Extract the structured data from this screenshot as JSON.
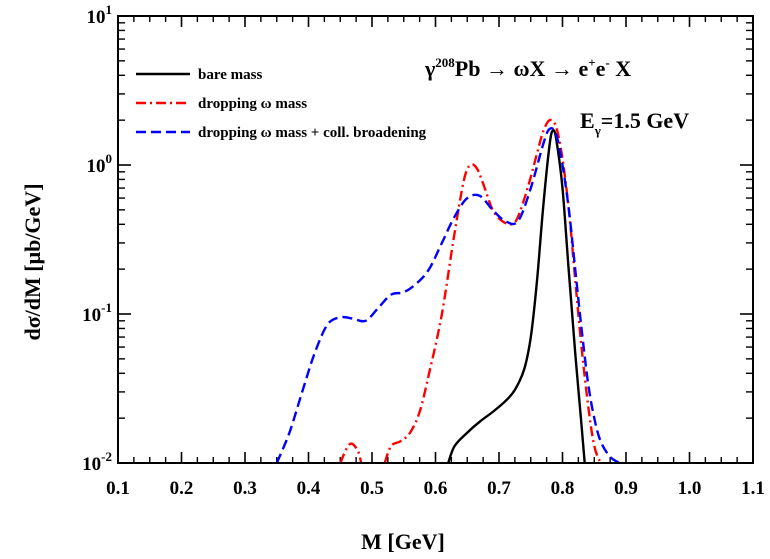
{
  "chart_data": {
    "type": "line",
    "xlabel": "M [GeV]",
    "ylabel": "dσ/dM [μb/GeV]",
    "xlim": [
      0.1,
      1.1
    ],
    "ylim": [
      0.01,
      10
    ],
    "yscale": "log",
    "xticks": [
      "0.1",
      "0.2",
      "0.3",
      "0.4",
      "0.5",
      "0.6",
      "0.7",
      "0.8",
      "0.9",
      "1.0",
      "1.1"
    ],
    "yticks": [
      {
        "base": "10",
        "exp": "-2"
      },
      {
        "base": "10",
        "exp": "-1"
      },
      {
        "base": "10",
        "exp": "0"
      },
      {
        "base": "10",
        "exp": "1"
      }
    ],
    "legend_position": "top-left",
    "annotations": {
      "reaction": {
        "gamma": "γ",
        "mass_number": "208",
        "text": "Pb → ωX → e",
        "charge1": "+",
        "e2": "e",
        "charge2": "-",
        "tail": " X"
      },
      "energy": {
        "e": "E",
        "sub": "γ",
        "value": "=1.5 GeV"
      }
    },
    "series": [
      {
        "name": "bare mass",
        "color": "#000000",
        "dash": "solid",
        "x": [
          0.62,
          0.63,
          0.65,
          0.67,
          0.69,
          0.71,
          0.725,
          0.74,
          0.75,
          0.76,
          0.77,
          0.78,
          0.785,
          0.79,
          0.8,
          0.81,
          0.82,
          0.83,
          0.835
        ],
        "y": [
          0.01,
          0.013,
          0.016,
          0.019,
          0.022,
          0.026,
          0.031,
          0.043,
          0.07,
          0.17,
          0.55,
          1.4,
          1.7,
          1.5,
          0.7,
          0.19,
          0.055,
          0.018,
          0.01
        ]
      },
      {
        "name": "dropping ω mass",
        "color": "#ff0000",
        "dash": "dashdot",
        "segments": [
          {
            "x": [
              0.45,
              0.46,
              0.468,
              0.478,
              0.483
            ],
            "y": [
              0.01,
              0.0125,
              0.0135,
              0.012,
              0.01
            ]
          },
          {
            "x": [
              0.52,
              0.53,
              0.545,
              0.56,
              0.575,
              0.59,
              0.61,
              0.63,
              0.645,
              0.655,
              0.665,
              0.675,
              0.69,
              0.705,
              0.72,
              0.73,
              0.745,
              0.76,
              0.77,
              0.78,
              0.79,
              0.8,
              0.81,
              0.82,
              0.83,
              0.84,
              0.85,
              0.86
            ],
            "y": [
              0.01,
              0.013,
              0.014,
              0.016,
              0.022,
              0.04,
              0.1,
              0.35,
              0.8,
              1.0,
              0.95,
              0.75,
              0.5,
              0.42,
              0.4,
              0.45,
              0.7,
              1.2,
              1.7,
              2.0,
              1.8,
              1.1,
              0.5,
              0.17,
              0.06,
              0.025,
              0.013,
              0.01
            ]
          }
        ]
      },
      {
        "name": "dropping ω mass + coll. broadening",
        "color": "#0000ff",
        "dash": "dashed",
        "x": [
          0.35,
          0.37,
          0.39,
          0.41,
          0.43,
          0.45,
          0.47,
          0.49,
          0.51,
          0.53,
          0.55,
          0.57,
          0.59,
          0.61,
          0.63,
          0.65,
          0.67,
          0.69,
          0.71,
          0.73,
          0.75,
          0.77,
          0.78,
          0.79,
          0.8,
          0.81,
          0.82,
          0.83,
          0.84,
          0.85,
          0.86,
          0.875,
          0.89
        ],
        "y": [
          0.01,
          0.016,
          0.03,
          0.055,
          0.085,
          0.095,
          0.093,
          0.09,
          0.11,
          0.135,
          0.14,
          0.16,
          0.2,
          0.3,
          0.45,
          0.6,
          0.62,
          0.5,
          0.42,
          0.42,
          0.7,
          1.4,
          1.75,
          1.6,
          1.0,
          0.5,
          0.2,
          0.08,
          0.035,
          0.02,
          0.014,
          0.011,
          0.01
        ]
      }
    ]
  }
}
